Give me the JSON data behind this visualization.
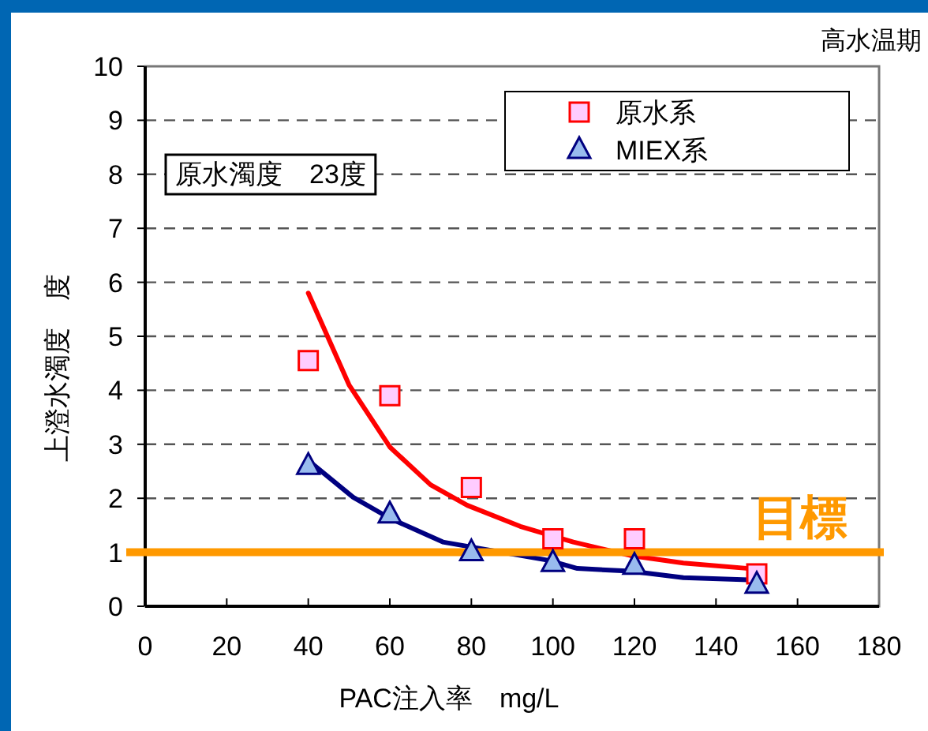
{
  "chart_data": {
    "type": "scatter",
    "title": "高水温期",
    "xlabel": "PAC注入率　mg/L",
    "ylabel": "上澄水濁度　度",
    "annotations": [
      "原水濁度　23度"
    ],
    "xlim": [
      0,
      180
    ],
    "xticks": [
      0,
      20,
      40,
      60,
      80,
      100,
      120,
      140,
      160,
      180
    ],
    "ylim": [
      0,
      10
    ],
    "yticks": [
      0,
      1,
      2,
      3,
      4,
      5,
      6,
      7,
      8,
      9,
      10
    ],
    "grid": "y",
    "legend": "top right",
    "ref_lines": [
      {
        "axis": "y",
        "value": 1,
        "label": "目標",
        "color": "#ff9900"
      }
    ],
    "series": [
      {
        "name": "原水系",
        "type": "scatter",
        "marker": "square",
        "color": "#ff0000",
        "x": [
          40,
          60,
          80,
          100,
          120,
          150
        ],
        "values": [
          4.55,
          3.9,
          2.2,
          1.25,
          1.25,
          0.6
        ]
      },
      {
        "name": "MIEX系",
        "type": "scatter",
        "marker": "triangle",
        "color": "#000080",
        "x": [
          40,
          60,
          80,
          100,
          120,
          150
        ],
        "values": [
          2.6,
          1.7,
          1.0,
          0.8,
          0.75,
          0.4
        ]
      },
      {
        "type": "line",
        "marker": "none",
        "color": "#ff0000",
        "x": [
          40,
          50,
          60,
          70,
          79,
          92,
          105,
          119,
          132,
          148
        ],
        "values": [
          5.8,
          4.1,
          2.95,
          2.25,
          1.87,
          1.48,
          1.19,
          0.94,
          0.8,
          0.7
        ]
      },
      {
        "type": "line",
        "marker": "none",
        "color": "#000080",
        "x": [
          40,
          51,
          60,
          73,
          99,
          106,
          119,
          132,
          148
        ],
        "values": [
          2.7,
          2.02,
          1.63,
          1.19,
          0.85,
          0.7,
          0.65,
          0.53,
          0.49
        ]
      }
    ]
  }
}
